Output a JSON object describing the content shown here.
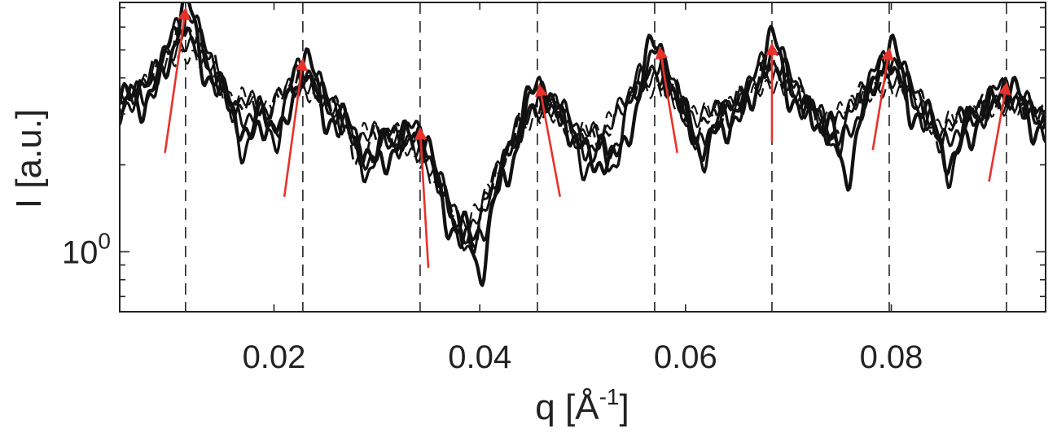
{
  "chart_data": {
    "type": "line",
    "title": "",
    "xlabel": "q [Å",
    "xlabel_exp": "-1",
    "xlabel_close": "]",
    "ylabel": "I [a.u.]",
    "xlim": [
      0.005,
      0.095
    ],
    "ylim": [
      0.62,
      7.3
    ],
    "yscale": "log",
    "x_ticks": [
      0.02,
      0.04,
      0.06,
      0.08
    ],
    "x_tick_labels": [
      "0.02",
      "0.04",
      "0.06",
      "0.08"
    ],
    "y_tick_base": "10",
    "y_tick_exp": "0",
    "y_tick_value": 1,
    "grid": false,
    "bragg_peak_positions": [
      0.0114,
      0.0228,
      0.0342,
      0.0456,
      0.057,
      0.0684,
      0.0798,
      0.0912
    ],
    "peak_heights": [
      6.9,
      4.6,
      2.65,
      3.75,
      5.05,
      5.2,
      5.0,
      3.8
    ],
    "series_count": 6,
    "trend_arrow_color": "#e8322b",
    "trend_arrows": [
      {
        "from": [
          0.0094,
          2.2
        ],
        "to": [
          0.0114,
          6.9
        ]
      },
      {
        "from": [
          0.021,
          1.55
        ],
        "to": [
          0.0228,
          4.6
        ]
      },
      {
        "from": [
          0.035,
          0.88
        ],
        "to": [
          0.0342,
          2.65
        ]
      },
      {
        "from": [
          0.0478,
          1.55
        ],
        "to": [
          0.0458,
          3.75
        ]
      },
      {
        "from": [
          0.0592,
          2.2
        ],
        "to": [
          0.0575,
          5.05
        ]
      },
      {
        "from": [
          0.0684,
          2.4
        ],
        "to": [
          0.0684,
          5.2
        ]
      },
      {
        "from": [
          0.0782,
          2.25
        ],
        "to": [
          0.0798,
          5.0
        ]
      },
      {
        "from": [
          0.0895,
          1.75
        ],
        "to": [
          0.0912,
          3.8
        ]
      }
    ]
  }
}
